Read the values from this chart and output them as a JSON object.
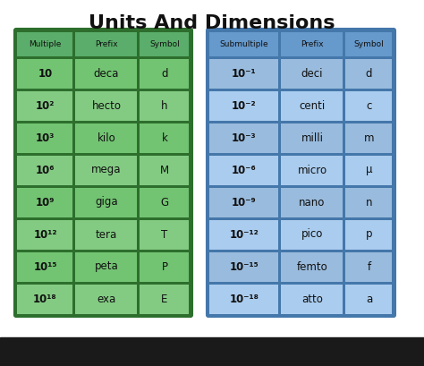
{
  "title": "Units And Dimensions",
  "title_fontsize": 16,
  "title_fontweight": "bold",
  "bg_color": "#ffffff",
  "bottom_bar_color": "#1a1a1a",
  "left_table": {
    "header": [
      "Multiple",
      "Prefix",
      "Symbol"
    ],
    "rows": [
      [
        "10",
        "deca",
        "d"
      ],
      [
        "10²",
        "hecto",
        "h"
      ],
      [
        "10³",
        "kilo",
        "k"
      ],
      [
        "10⁶",
        "mega",
        "M"
      ],
      [
        "10⁹",
        "giga",
        "G"
      ],
      [
        "10¹²",
        "tera",
        "T"
      ],
      [
        "10¹⁵",
        "peta",
        "P"
      ],
      [
        "10¹⁸",
        "exa",
        "E"
      ]
    ],
    "header_color": "#5aad6a",
    "row_color_odd": "#72c472",
    "row_color_even": "#83cb83",
    "border_color": "#2d6e2d",
    "text_color": "#111111"
  },
  "right_table": {
    "header": [
      "Submultiple",
      "Prefix",
      "Symbol"
    ],
    "rows": [
      [
        "10⁻¹",
        "deci",
        "d"
      ],
      [
        "10⁻²",
        "centi",
        "c"
      ],
      [
        "10⁻³",
        "milli",
        "m"
      ],
      [
        "10⁻⁶",
        "micro",
        "μ"
      ],
      [
        "10⁻⁹",
        "nano",
        "n"
      ],
      [
        "10⁻¹²",
        "pico",
        "p"
      ],
      [
        "10⁻¹⁵",
        "femto",
        "f"
      ],
      [
        "10⁻¹⁸",
        "atto",
        "a"
      ]
    ],
    "header_color": "#6699cc",
    "row_color_odd": "#99bbdd",
    "row_color_even": "#aaccee",
    "border_color": "#4477aa",
    "text_color": "#111111"
  }
}
